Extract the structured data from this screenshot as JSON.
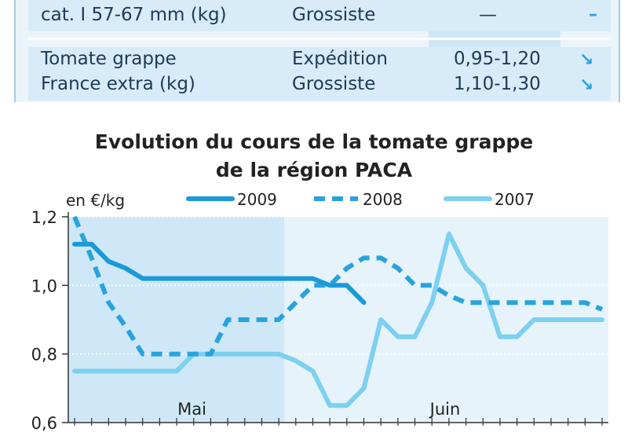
{
  "table": {
    "rows": [
      {
        "product": "cat. I 57-67 mm (kg)",
        "market": "Grossiste",
        "price": "—",
        "trend": "–"
      },
      {
        "product": "Tomate grappe",
        "market": "Expédition",
        "price": "0,95-1,20",
        "trend": "↘"
      },
      {
        "product": "France extra (kg)",
        "market": "Grossiste",
        "price": "1,10-1,30",
        "trend": "↘"
      }
    ]
  },
  "chart_data": {
    "type": "line",
    "title": "Evolution du cours de la tomate grappe",
    "subtitle": "de la région PACA",
    "ylabel": "en €/kg",
    "ylim": [
      0.6,
      1.2
    ],
    "yticks": [
      "0,6",
      "0,8",
      "1,0",
      "1,2"
    ],
    "month_labels": [
      "Mai",
      "Juin"
    ],
    "x_count": 32,
    "legend_position": "top",
    "series": [
      {
        "name": "2009",
        "style": "solid",
        "color": "#1a9ad8",
        "values": [
          1.12,
          1.12,
          1.07,
          1.05,
          1.02,
          1.02,
          1.02,
          1.02,
          1.02,
          1.02,
          1.02,
          1.02,
          1.02,
          1.02,
          1.02,
          1.0,
          1.0,
          0.95
        ]
      },
      {
        "name": "2008",
        "style": "dashed",
        "color": "#29a3dd",
        "values": [
          1.2,
          1.08,
          0.95,
          0.88,
          0.8,
          0.8,
          0.8,
          0.8,
          0.8,
          0.9,
          0.9,
          0.9,
          0.9,
          0.95,
          1.0,
          1.0,
          1.05,
          1.08,
          1.08,
          1.05,
          1.0,
          1.0,
          0.97,
          0.95,
          0.95,
          0.95,
          0.95,
          0.95,
          0.95,
          0.95,
          0.95,
          0.93
        ]
      },
      {
        "name": "2007",
        "style": "solid",
        "color": "#7cd0f0",
        "values": [
          0.75,
          0.75,
          0.75,
          0.75,
          0.75,
          0.75,
          0.75,
          0.8,
          0.8,
          0.8,
          0.8,
          0.8,
          0.8,
          0.78,
          0.75,
          0.65,
          0.65,
          0.7,
          0.9,
          0.85,
          0.85,
          0.95,
          1.15,
          1.05,
          1.0,
          0.85,
          0.85,
          0.9,
          0.9,
          0.9,
          0.9,
          0.9
        ]
      }
    ]
  }
}
